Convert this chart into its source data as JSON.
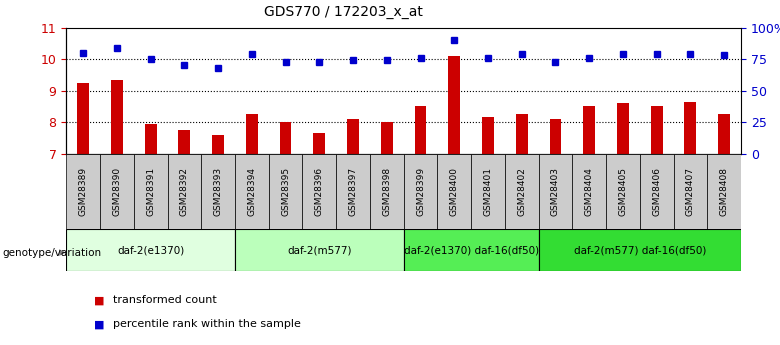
{
  "title": "GDS770 / 172203_x_at",
  "samples": [
    "GSM28389",
    "GSM28390",
    "GSM28391",
    "GSM28392",
    "GSM28393",
    "GSM28394",
    "GSM28395",
    "GSM28396",
    "GSM28397",
    "GSM28398",
    "GSM28399",
    "GSM28400",
    "GSM28401",
    "GSM28402",
    "GSM28403",
    "GSM28404",
    "GSM28405",
    "GSM28406",
    "GSM28407",
    "GSM28408"
  ],
  "transformed_count": [
    9.25,
    9.35,
    7.95,
    7.75,
    7.6,
    8.25,
    8.0,
    7.65,
    8.1,
    8.0,
    8.5,
    10.1,
    8.15,
    8.25,
    8.1,
    8.5,
    8.6,
    8.5,
    8.65,
    8.25
  ],
  "percentile_rank": [
    80,
    84,
    75,
    70,
    68,
    79,
    73,
    73,
    74,
    74,
    76,
    90,
    76,
    79,
    73,
    76,
    79,
    79,
    79,
    78
  ],
  "bar_color": "#cc0000",
  "dot_color": "#0000cc",
  "ylim_left": [
    7,
    11
  ],
  "ylim_right": [
    0,
    100
  ],
  "yticks_left": [
    7,
    8,
    9,
    10,
    11
  ],
  "yticks_right": [
    0,
    25,
    50,
    75,
    100
  ],
  "yticklabels_right": [
    "0",
    "25",
    "50",
    "75",
    "100%"
  ],
  "groups": [
    {
      "label": "daf-2(e1370)",
      "start": 0,
      "end": 5,
      "color": "#e0ffe0"
    },
    {
      "label": "daf-2(m577)",
      "start": 5,
      "end": 10,
      "color": "#bbffbb"
    },
    {
      "label": "daf-2(e1370) daf-16(df50)",
      "start": 10,
      "end": 14,
      "color": "#55ee55"
    },
    {
      "label": "daf-2(m577) daf-16(df50)",
      "start": 14,
      "end": 20,
      "color": "#33dd33"
    }
  ],
  "genotype_label": "genotype/variation",
  "legend_red": "transformed count",
  "legend_blue": "percentile rank within the sample",
  "grid_color": "#000000",
  "bg_color": "#ffffff",
  "plot_bg": "#ffffff",
  "xticklabel_bg": "#cccccc"
}
